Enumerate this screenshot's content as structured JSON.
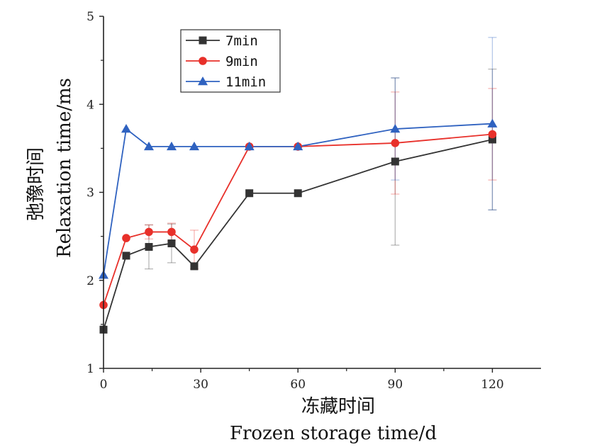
{
  "chart_data": {
    "type": "line",
    "xlabel_cn": "冻藏时间",
    "xlabel_en": "Frozen storage time/d",
    "ylabel_cn": "弛豫时间",
    "ylabel_en": "Relaxation time/ms",
    "xlim": [
      0,
      135
    ],
    "ylim": [
      1,
      5
    ],
    "x_ticks": [
      0,
      30,
      60,
      90,
      120
    ],
    "y_ticks": [
      1,
      2,
      3,
      4,
      5
    ],
    "x": [
      0,
      7,
      14,
      21,
      28,
      45,
      60,
      90,
      120
    ],
    "series": [
      {
        "name": "7min",
        "color": "#333333",
        "marker": "square",
        "values": [
          1.44,
          2.28,
          2.38,
          2.42,
          2.16,
          2.99,
          2.99,
          3.35,
          3.6
        ],
        "error": [
          0,
          0,
          0.25,
          0.22,
          0,
          0,
          0,
          0.95,
          0.8
        ]
      },
      {
        "name": "9min",
        "color": "#e8302a",
        "marker": "circle",
        "values": [
          1.72,
          2.48,
          2.55,
          2.55,
          2.35,
          3.52,
          3.52,
          3.56,
          3.66
        ],
        "error": [
          0,
          0,
          0.08,
          0.1,
          0.22,
          0,
          0,
          0.58,
          0.52
        ]
      },
      {
        "name": "11min",
        "color": "#2f62c0",
        "marker": "triangle",
        "values": [
          2.06,
          3.72,
          3.52,
          3.52,
          3.52,
          3.52,
          3.52,
          3.72,
          3.78
        ],
        "error": [
          0,
          0,
          0,
          0,
          0,
          0,
          0,
          0.58,
          0.98
        ]
      }
    ],
    "legend_position": "top-left",
    "grid": false
  }
}
